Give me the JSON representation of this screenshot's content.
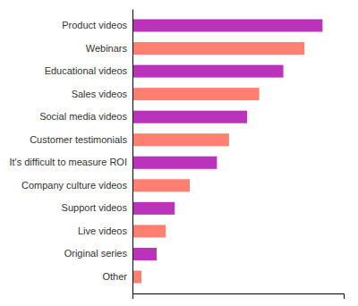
{
  "chart_data": {
    "type": "bar",
    "orientation": "horizontal",
    "categories": [
      "Other",
      "Original series",
      "Live videos",
      "Support videos",
      "Company culture videos",
      "It's difficult to measure ROI",
      "Customer testimonials",
      "Social media videos",
      "Sales videos",
      "Educational videos",
      "Webinars",
      "Product videos"
    ],
    "values": [
      3,
      8,
      11,
      14,
      19,
      28,
      32,
      38,
      42,
      50,
      57,
      63
    ],
    "colors": [
      "#FF8070",
      "#BB33BB",
      "#FF8070",
      "#BB33BB",
      "#FF8070",
      "#BB33BB",
      "#FF8070",
      "#BB33BB",
      "#FF8070",
      "#BB33BB",
      "#FF8070",
      "#BB33BB"
    ],
    "xlim": [
      0,
      70
    ],
    "tick_labels": "y",
    "grid": false
  }
}
